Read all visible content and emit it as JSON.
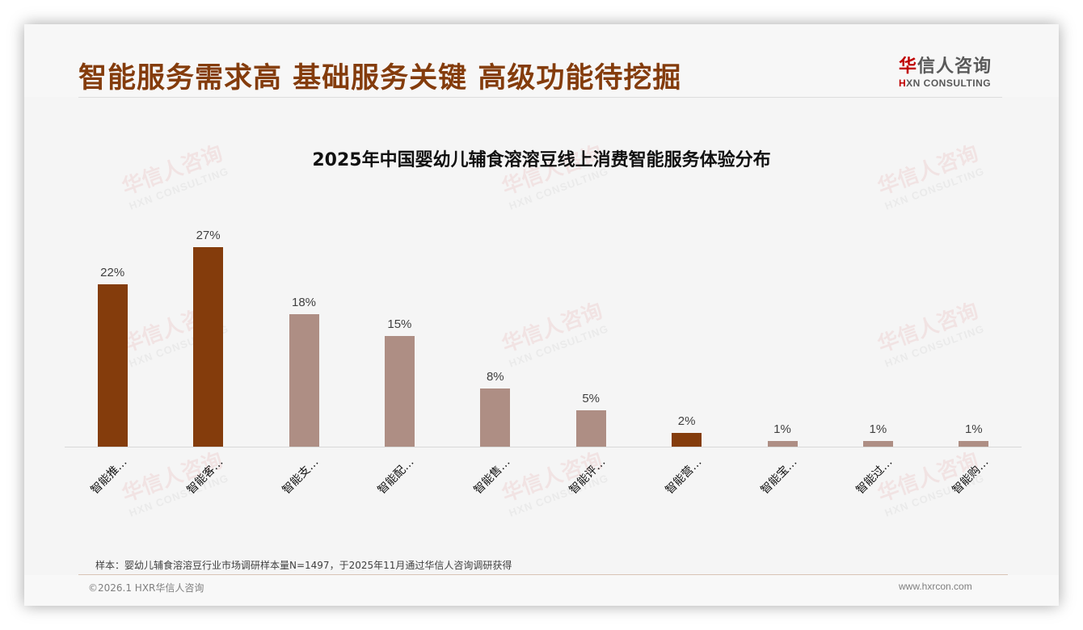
{
  "header": {
    "title": "智能服务需求高 基础服务关键 高级功能待挖掘",
    "logo_cn_first": "华",
    "logo_cn_rest": "信人咨询",
    "logo_en_first": "H",
    "logo_en_rest": "XN CONSULTING"
  },
  "watermark": {
    "cn": "华信人咨询",
    "en": "HXN CONSULTING"
  },
  "colors": {
    "title": "#843c0c",
    "bar_dark": "#843c0c",
    "bar_light": "#ae8e84",
    "logo_red": "#c00000"
  },
  "chart_data": {
    "type": "bar",
    "title": "2025年中国婴幼儿辅食溶溶豆线上消费智能服务体验分布",
    "categories": [
      "智能推…",
      "智能客…",
      "智能支…",
      "智能配…",
      "智能售…",
      "智能评…",
      "智能营…",
      "智能宝…",
      "智能过…",
      "智能购…"
    ],
    "values": [
      22,
      27,
      18,
      15,
      8,
      5,
      2,
      1,
      1,
      1
    ],
    "value_labels": [
      "22%",
      "27%",
      "18%",
      "15%",
      "8%",
      "5%",
      "2%",
      "1%",
      "1%",
      "1%"
    ],
    "highlight": [
      true,
      true,
      false,
      false,
      false,
      false,
      true,
      false,
      false,
      false
    ],
    "xlabel": "",
    "ylabel": "",
    "ylim": [
      0,
      30
    ],
    "unit": "%",
    "grid": false,
    "legend": "none"
  },
  "footer": {
    "note": "样本：婴幼儿辅食溶溶豆行业市场调研样本量N=1497，于2025年11月通过华信人咨询调研获得",
    "copyright": "©2026.1 HXR华信人咨询",
    "website": "www.hxrcon.com"
  }
}
